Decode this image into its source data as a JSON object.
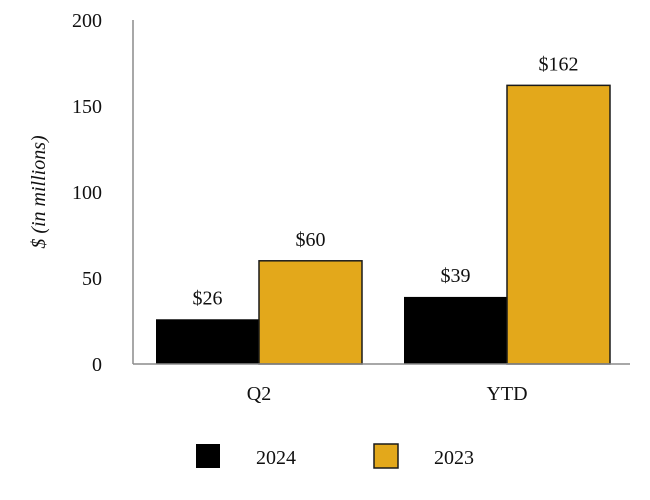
{
  "chart_data": {
    "type": "bar",
    "title": "",
    "xlabel": "",
    "ylabel": "$ (in millions)",
    "ylim": [
      0,
      200
    ],
    "yticks": [
      0,
      50,
      100,
      150,
      200
    ],
    "categories": [
      "Q2",
      "YTD"
    ],
    "series": [
      {
        "name": "2024",
        "values": [
          26,
          39
        ],
        "labels": [
          "$26",
          "$39"
        ],
        "color": "#000000"
      },
      {
        "name": "2023",
        "values": [
          60,
          162
        ],
        "labels": [
          "$60",
          "$162"
        ],
        "color": "#E3A81B"
      }
    ],
    "legend_position": "bottom",
    "grid": false
  }
}
